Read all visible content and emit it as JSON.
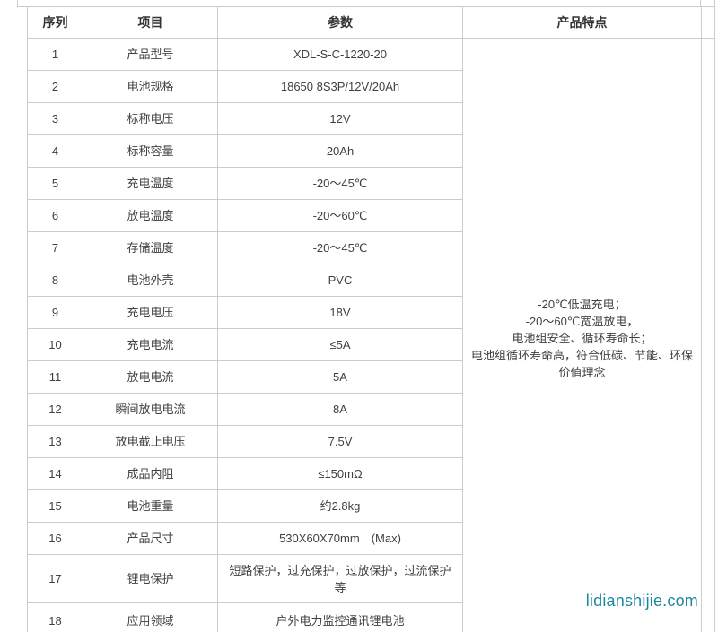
{
  "table": {
    "headers": {
      "no": "序列",
      "item": "项目",
      "value": "参数",
      "features": "产品特点"
    },
    "rows": [
      {
        "no": "1",
        "item": "产品型号",
        "value": "XDL-S-C-1220-20"
      },
      {
        "no": "2",
        "item": "电池规格",
        "value": "18650 8S3P/12V/20Ah"
      },
      {
        "no": "3",
        "item": "标称电压",
        "value": "12V"
      },
      {
        "no": "4",
        "item": "标称容量",
        "value": "20Ah"
      },
      {
        "no": "5",
        "item": "充电温度",
        "value": "-20～45℃"
      },
      {
        "no": "6",
        "item": "放电温度",
        "value": "-20～60℃"
      },
      {
        "no": "7",
        "item": "存储温度",
        "value": "-20～45℃"
      },
      {
        "no": "8",
        "item": "电池外壳",
        "value": "PVC"
      },
      {
        "no": "9",
        "item": "充电电压",
        "value": "18V"
      },
      {
        "no": "10",
        "item": "充电电流",
        "value": "≤5A"
      },
      {
        "no": "11",
        "item": "放电电流",
        "value": "5A"
      },
      {
        "no": "12",
        "item": "瞬间放电电流",
        "value": "8A"
      },
      {
        "no": "13",
        "item": "放电截止电压",
        "value": "7.5V"
      },
      {
        "no": "14",
        "item": "成品内阻",
        "value": "≤150mΩ"
      },
      {
        "no": "15",
        "item": "电池重量",
        "value": "约2.8kg"
      },
      {
        "no": "16",
        "item": "产品尺寸",
        "value": "530X60X70mm　(Max)"
      },
      {
        "no": "17",
        "item": "锂电保护",
        "value": "短路保护，过充保护，过放保护，过流保护\n等"
      },
      {
        "no": "18",
        "item": "应用领域",
        "value": "户外电力监控通讯锂电池"
      }
    ],
    "features_lines": [
      "-20℃低温充电；",
      "-20～60℃宽温放电，",
      "电池组安全、循环寿命长；",
      "电池组循环寿命高，符合低碳、节能、环保",
      "价值理念"
    ]
  },
  "watermark": "lidianshijie.com",
  "colors": {
    "border": "#cccccc",
    "header_text": "#333333",
    "body_text": "#404040",
    "watermark": "#1c87a0"
  }
}
